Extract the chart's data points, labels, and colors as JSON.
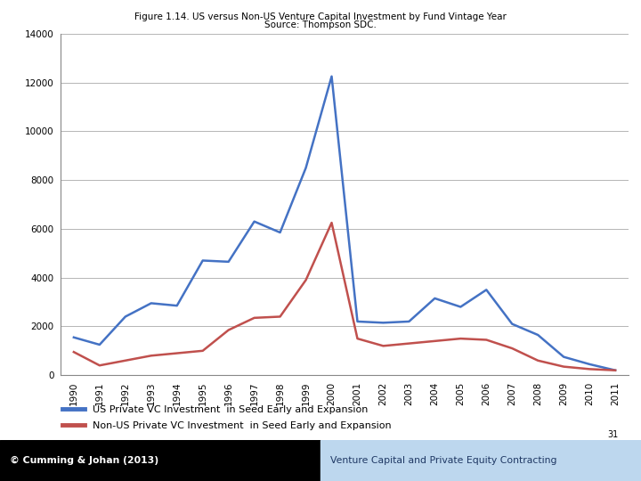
{
  "title_line1": "Figure 1.14. US versus Non-US Venture Capital Investment by Fund Vintage Year",
  "title_line2": "Source: Thompson SDC.",
  "years": [
    1990,
    1991,
    1992,
    1993,
    1994,
    1995,
    1996,
    1997,
    1998,
    1999,
    2000,
    2001,
    2002,
    2003,
    2004,
    2005,
    2006,
    2007,
    2008,
    2009,
    2010,
    2011
  ],
  "us_vc": [
    1550,
    1250,
    2400,
    2950,
    2850,
    4700,
    4650,
    6300,
    5850,
    8500,
    12250,
    2200,
    2150,
    2200,
    3150,
    2800,
    3500,
    2100,
    1650,
    750,
    450,
    200
  ],
  "nonus_vc": [
    950,
    400,
    600,
    800,
    900,
    1000,
    1850,
    2350,
    2400,
    3900,
    6250,
    1500,
    1200,
    1300,
    1400,
    1500,
    1450,
    1100,
    600,
    350,
    250,
    200
  ],
  "us_color": "#4472C4",
  "nonus_color": "#C0504D",
  "ylim": [
    0,
    14000
  ],
  "yticks": [
    0,
    2000,
    4000,
    6000,
    8000,
    10000,
    12000,
    14000
  ],
  "legend_us": "US Private VC Investment  in Seed Early and Expansion",
  "legend_nonus": "Non-US Private VC Investment  in Seed Early and Expansion",
  "footer_left": "© Cumming & Johan (2013)",
  "footer_right": "Venture Capital and Private Equity Contracting",
  "page_num": "31",
  "bg_color": "#FFFFFF",
  "plot_bg_color": "#FFFFFF",
  "grid_color": "#AAAAAA",
  "line_width": 1.8
}
